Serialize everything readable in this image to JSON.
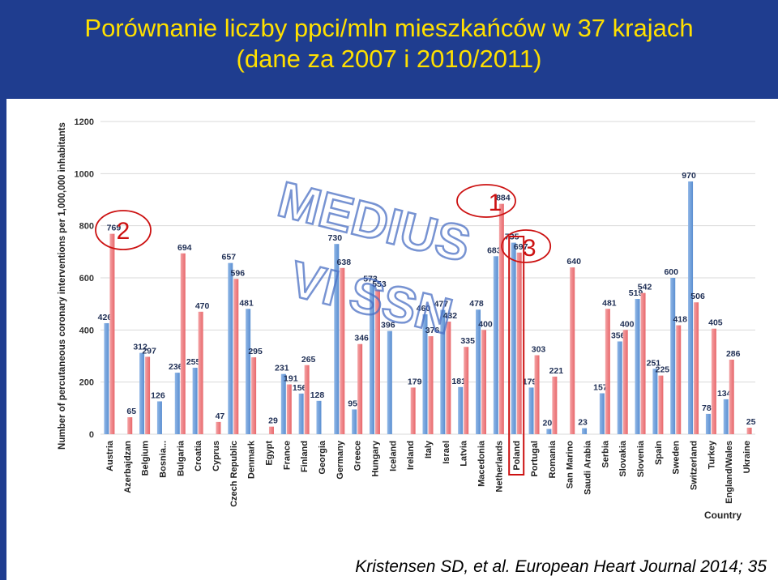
{
  "header": {
    "title_line1": "Porównanie liczby ppci/mln mieszkańców w 37 krajach",
    "title_line2": "(dane za 2007 i 2010/2011)"
  },
  "citation": "Kristensen SD, et al. European Heart Journal 2014; 35",
  "watermark": {
    "line1": "MEDIUS",
    "line2": "VI SSN"
  },
  "annotations": {
    "circle_label": "2",
    "box_label_1": "1",
    "box_label_3": "3"
  },
  "colors": {
    "series_2007": "#5b8fd1",
    "series_2010": "#e8686c",
    "header_bg": "#1f3d8f",
    "title_text": "#ffe000"
  },
  "chart_data": {
    "type": "bar",
    "ylabel": "Number of percutaneous coronary interventions per 1,000,000 inhabitants",
    "xlabel": "Country",
    "ylim": [
      0,
      1200
    ],
    "yticks": [
      0,
      200,
      400,
      600,
      800,
      1000,
      1200
    ],
    "grid": true,
    "categories": [
      "Austria",
      "Azerbajdzan",
      "Belgium",
      "Bosnia...",
      "Bulgaria",
      "Croatia",
      "Cyprus",
      "Czech Republic",
      "Denmark",
      "Egypt",
      "France",
      "Finland",
      "Georgia",
      "Germany",
      "Greece",
      "Hungary",
      "Iceland",
      "Ireland",
      "Italy",
      "Israel",
      "Latvia",
      "Macedonia",
      "Netherlands",
      "Poland",
      "Portugal",
      "Romania",
      "San Marino",
      "Saudi Arabia",
      "Serbia",
      "Slovakia",
      "Slovenia",
      "Spain",
      "Sweden",
      "Switzerland",
      "Turkey",
      "England/Wales",
      "Ukraine"
    ],
    "series": [
      {
        "values": [
          426,
          null,
          312,
          126,
          236,
          255,
          null,
          657,
          481,
          null,
          231,
          156,
          128,
          730,
          95,
          573,
          396,
          null,
          460,
          477,
          181,
          478,
          683,
          735,
          179,
          20,
          null,
          23,
          157,
          356,
          519,
          251,
          600,
          970,
          78,
          134,
          null
        ]
      },
      {
        "values": [
          769,
          65,
          297,
          null,
          694,
          470,
          47,
          596,
          295,
          29,
          191,
          265,
          null,
          638,
          346,
          553,
          null,
          179,
          376,
          432,
          335,
          400,
          884,
          697,
          303,
          221,
          640,
          null,
          481,
          400,
          542,
          225,
          418,
          506,
          405,
          286,
          25
        ]
      }
    ]
  }
}
